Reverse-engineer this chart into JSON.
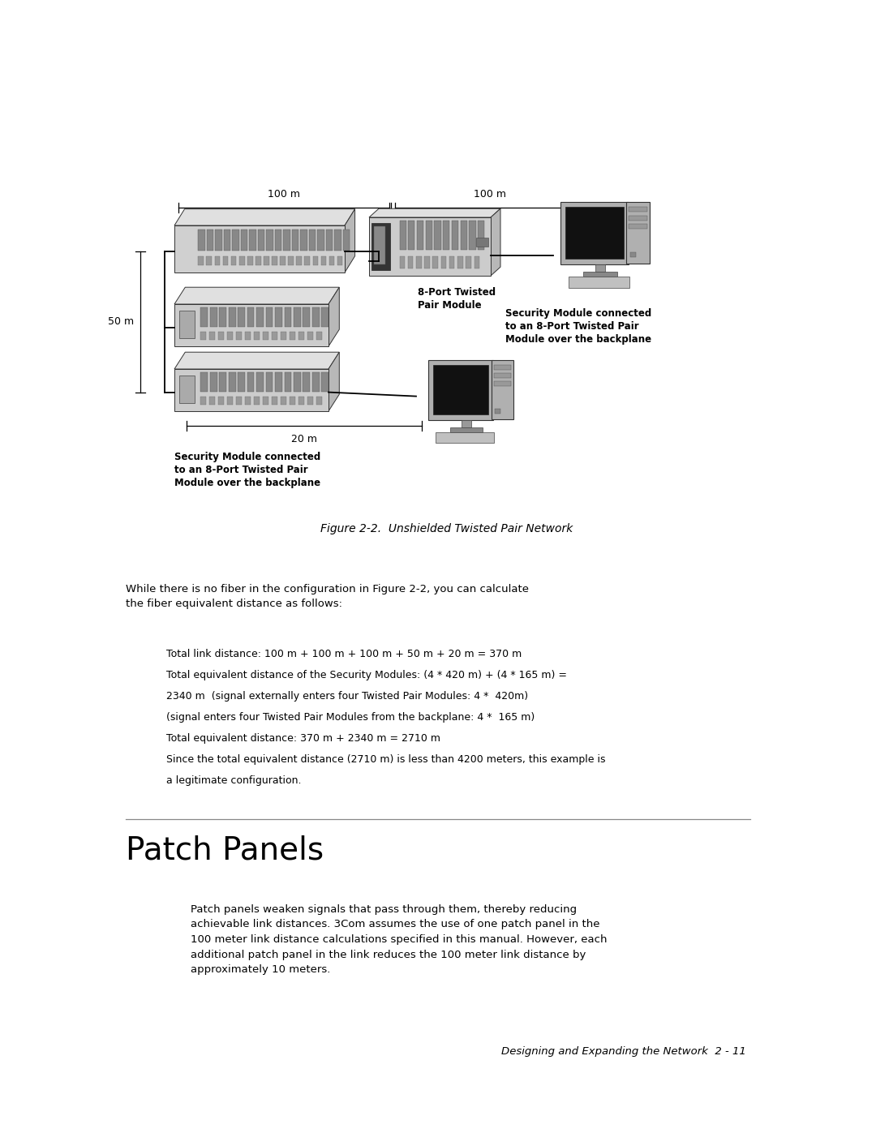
{
  "bg_color": "#ffffff",
  "page_width": 10.8,
  "page_height": 13.97,
  "figure_caption": "Figure 2-2.  Unshielded Twisted Pair Network",
  "section_title": "Patch Panels",
  "body_text_intro": "While there is no fiber in the configuration in Figure 2-2, you can calculate\nthe fiber equivalent distance as follows:",
  "indented_lines": [
    "Total link distance: 100 m + 100 m + 100 m + 50 m + 20 m = 370 m",
    "Total equivalent distance of the Security Modules: (4 * 420 m) + (4 * 165 m) =",
    "2340 m  (signal externally enters four Twisted Pair Modules: 4 *  420m)",
    "(signal enters four Twisted Pair Modules from the backplane: 4 *  165 m)",
    "Total equivalent distance: 370 m + 2340 m = 2710 m",
    "Since the total equivalent distance (2710 m) is less than 4200 meters, this example is",
    "a legitimate configuration."
  ],
  "patch_panel_body": "Patch panels weaken signals that pass through them, thereby reducing\nachievable link distances. 3Com assumes the use of one patch panel in the\n100 meter link distance calculations specified in this manual. However, each\nadditional patch panel in the link reduces the 100 meter link distance by\napproximately 10 meters.",
  "footer_text": "Designing and Expanding the Network  2 - 11"
}
